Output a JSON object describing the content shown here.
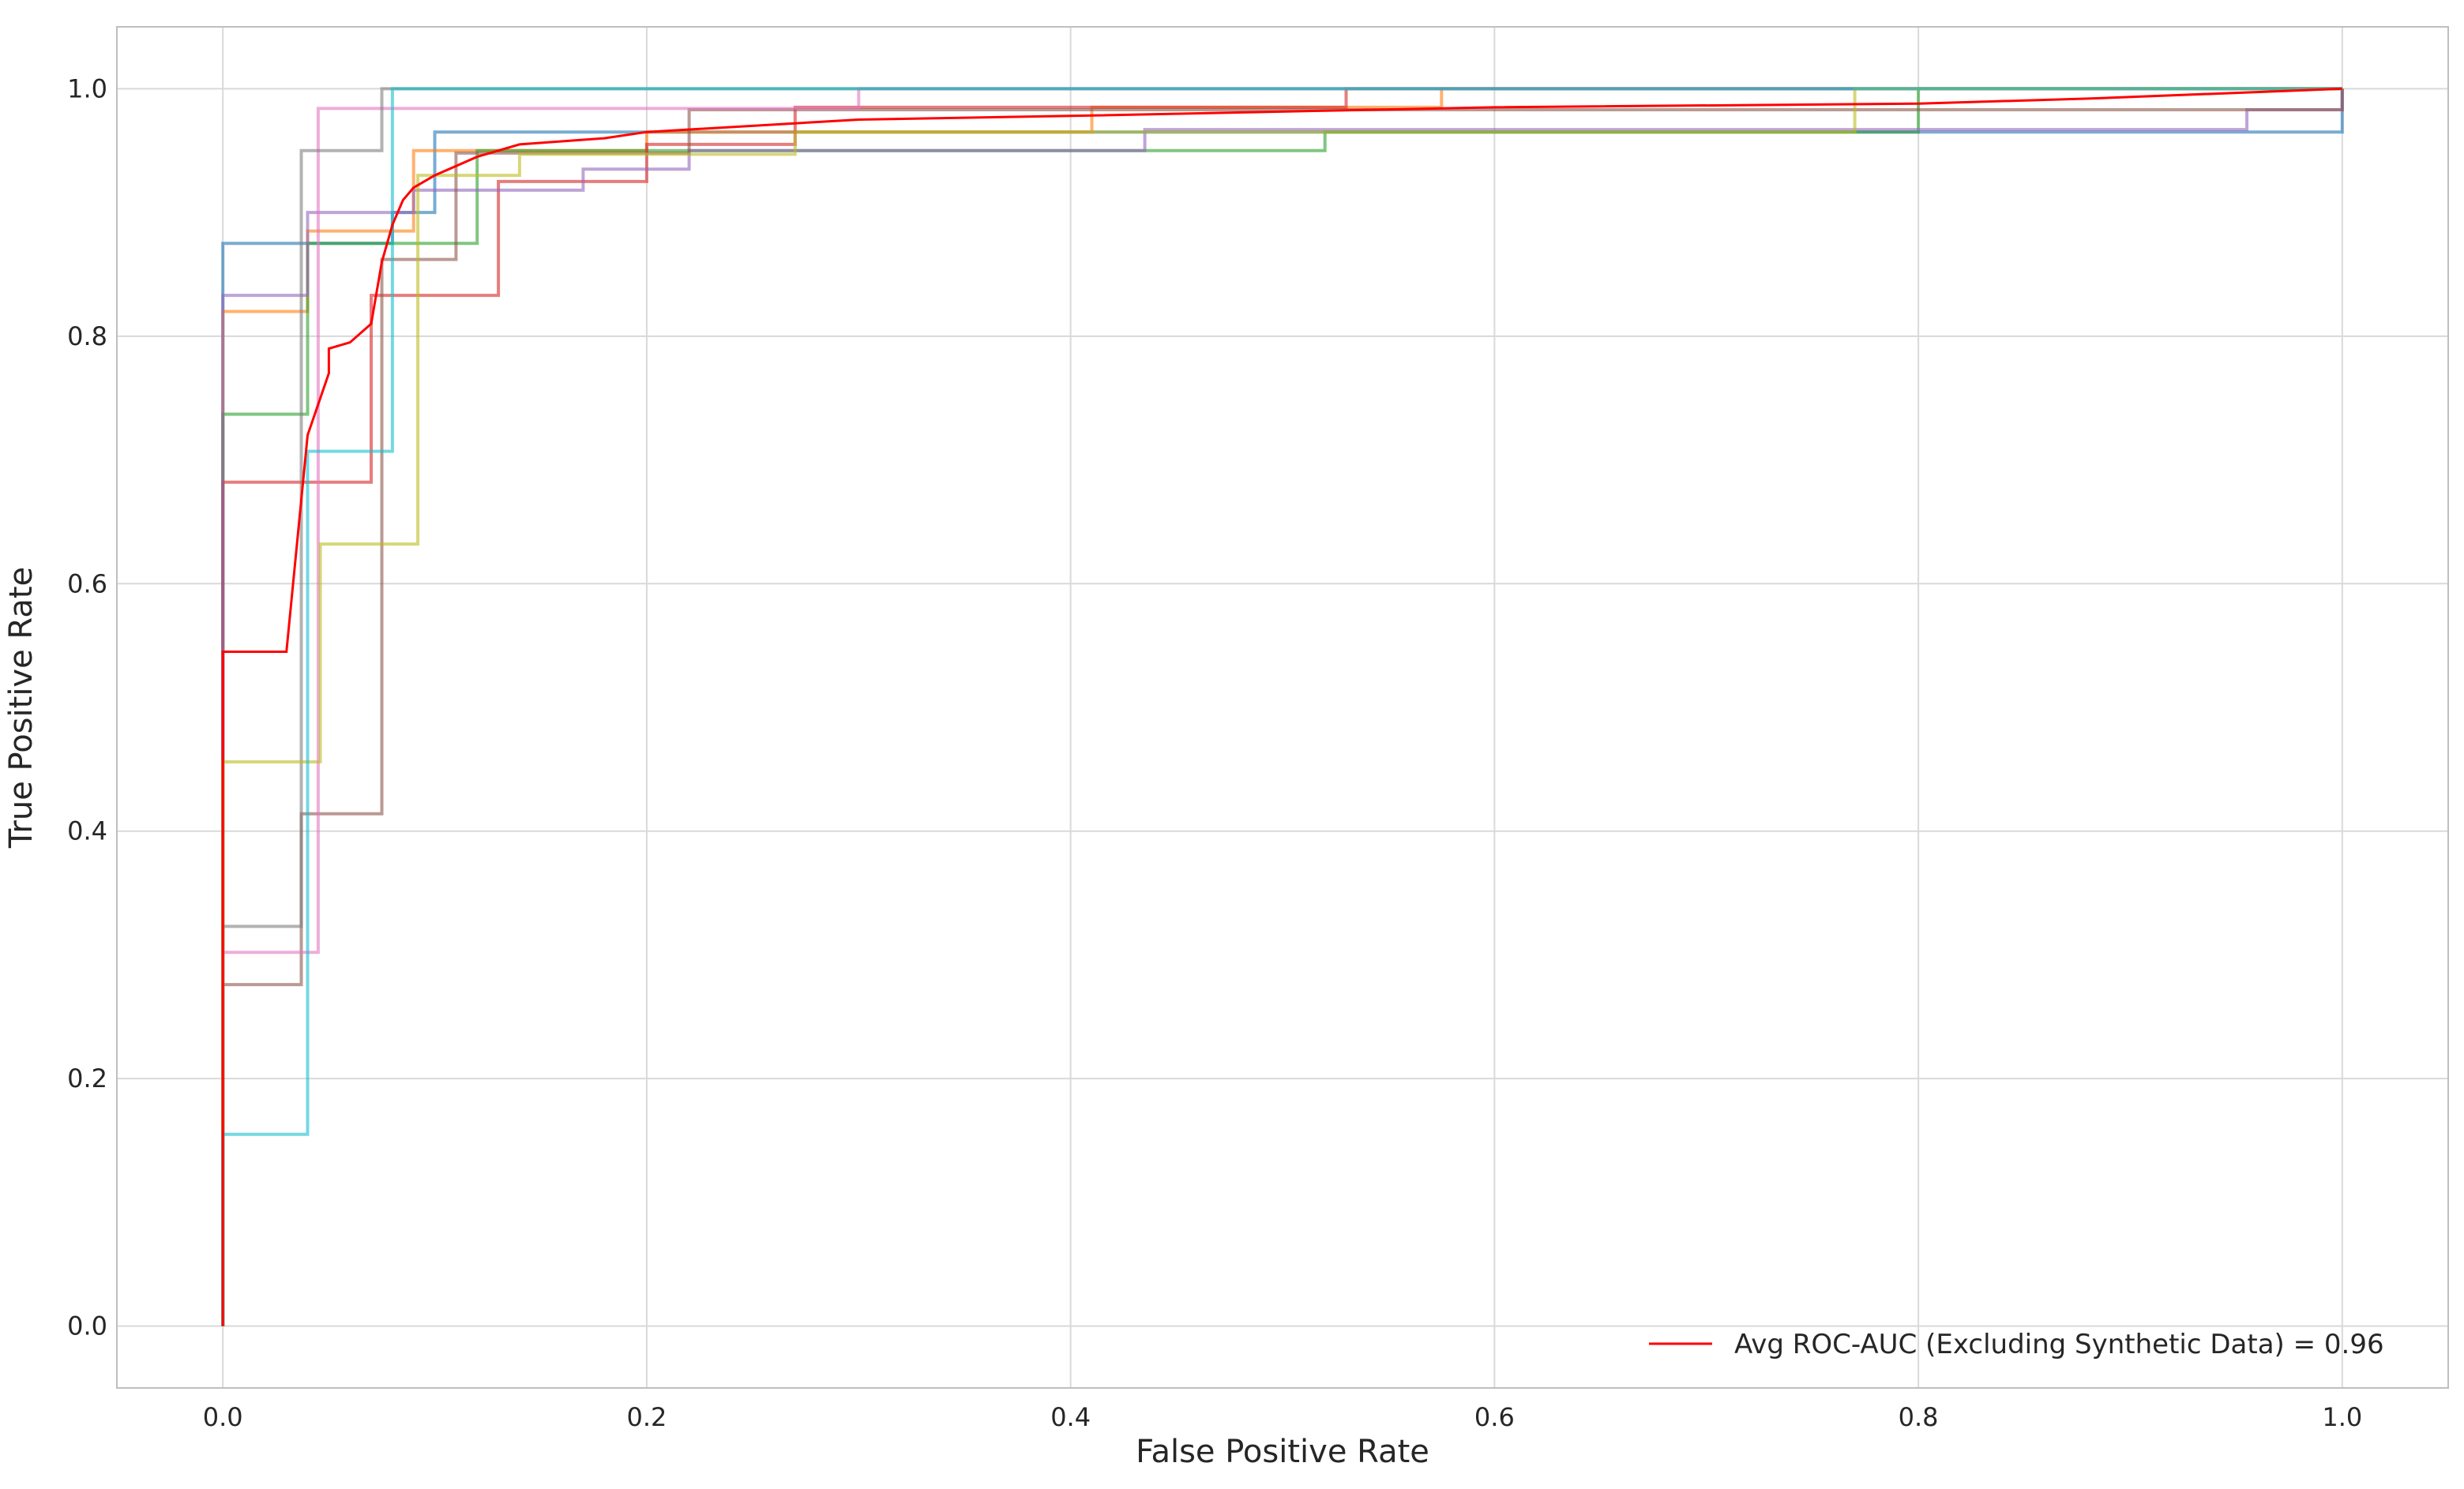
{
  "chart_data": {
    "type": "line",
    "title": "",
    "xlabel": "False Positive Rate",
    "ylabel": "True Positive Rate",
    "xlim": [
      -0.05,
      1.05
    ],
    "ylim": [
      -0.05,
      1.05
    ],
    "xticks": [
      0.0,
      0.2,
      0.4,
      0.6,
      0.8,
      1.0
    ],
    "yticks": [
      0.0,
      0.2,
      0.4,
      0.6,
      0.8,
      1.0
    ],
    "xtick_labels": [
      "0.0",
      "0.2",
      "0.4",
      "0.6",
      "0.8",
      "1.0"
    ],
    "ytick_labels": [
      "0.0",
      "0.2",
      "0.4",
      "0.6",
      "0.8",
      "1.0"
    ],
    "grid": true,
    "legend_position": "lower-right",
    "legend_entries": [
      "Avg ROC-AUC (Excluding Synthetic Data) = 0.96"
    ],
    "series": [
      {
        "color": "#1f77b4",
        "alpha": 0.6,
        "x": [
          0,
          0,
          0.08,
          0.08,
          0.1,
          0.1,
          1.0,
          1.0
        ],
        "y": [
          0,
          0.875,
          0.875,
          0.9,
          0.9,
          0.965,
          0.965,
          1.0
        ]
      },
      {
        "color": "#ff7f0e",
        "alpha": 0.6,
        "x": [
          0,
          0,
          0.04,
          0.04,
          0.09,
          0.09,
          0.2,
          0.2,
          0.41,
          0.41,
          0.575,
          0.575,
          1.0
        ],
        "y": [
          0,
          0.82,
          0.82,
          0.885,
          0.885,
          0.95,
          0.95,
          0.965,
          0.965,
          0.985,
          0.985,
          1.0,
          1.0
        ]
      },
      {
        "color": "#2ca02c",
        "alpha": 0.6,
        "x": [
          0,
          0,
          0.04,
          0.04,
          0.12,
          0.12,
          0.19,
          0.19,
          0.52,
          0.52,
          0.8,
          0.8,
          1.0
        ],
        "y": [
          0,
          0.737,
          0.737,
          0.875,
          0.875,
          0.95,
          0.95,
          0.95,
          0.95,
          0.965,
          0.965,
          1.0,
          1.0
        ]
      },
      {
        "color": "#d62728",
        "alpha": 0.6,
        "x": [
          0,
          0,
          0.07,
          0.07,
          0.13,
          0.13,
          0.2,
          0.2,
          0.27,
          0.27,
          0.53,
          0.53,
          1.0
        ],
        "y": [
          0,
          0.682,
          0.682,
          0.833,
          0.833,
          0.925,
          0.925,
          0.955,
          0.955,
          0.985,
          0.985,
          1.0,
          1.0
        ]
      },
      {
        "color": "#9467bd",
        "alpha": 0.6,
        "x": [
          0,
          0,
          0.04,
          0.04,
          0.09,
          0.09,
          0.17,
          0.17,
          0.22,
          0.22,
          0.435,
          0.435,
          0.955,
          0.955,
          1.0,
          1.0
        ],
        "y": [
          0,
          0.833,
          0.833,
          0.9,
          0.9,
          0.918,
          0.918,
          0.935,
          0.935,
          0.95,
          0.95,
          0.967,
          0.967,
          0.983,
          0.983,
          1.0
        ]
      },
      {
        "color": "#8c564b",
        "alpha": 0.6,
        "x": [
          0,
          0,
          0.037,
          0.037,
          0.075,
          0.075,
          0.11,
          0.11,
          0.22,
          0.22,
          1.0,
          1.0
        ],
        "y": [
          0,
          0.276,
          0.276,
          0.414,
          0.414,
          0.862,
          0.862,
          0.948,
          0.948,
          0.983,
          0.983,
          1.0
        ]
      },
      {
        "color": "#e377c2",
        "alpha": 0.6,
        "x": [
          0,
          0,
          0.045,
          0.045,
          0.3,
          0.3,
          1.0
        ],
        "y": [
          0,
          0.302,
          0.302,
          0.984,
          0.984,
          1.0,
          1.0
        ]
      },
      {
        "color": "#7f7f7f",
        "alpha": 0.6,
        "x": [
          0,
          0,
          0.037,
          0.037,
          0.075,
          0.075,
          1.0
        ],
        "y": [
          0,
          0.323,
          0.323,
          0.95,
          0.95,
          1.0,
          1.0
        ]
      },
      {
        "color": "#bcbd22",
        "alpha": 0.6,
        "x": [
          0,
          0,
          0.046,
          0.046,
          0.092,
          0.092,
          0.14,
          0.14,
          0.27,
          0.27,
          0.77,
          0.77,
          1.0
        ],
        "y": [
          0,
          0.456,
          0.456,
          0.632,
          0.632,
          0.93,
          0.93,
          0.947,
          0.947,
          0.965,
          0.965,
          1.0,
          1.0
        ]
      },
      {
        "color": "#17becf",
        "alpha": 0.6,
        "x": [
          0,
          0,
          0.04,
          0.04,
          0.08,
          0.08,
          1.0
        ],
        "y": [
          0,
          0.155,
          0.155,
          0.707,
          0.707,
          1.0,
          1.0
        ]
      },
      {
        "color": "#ff0000",
        "alpha": 1.0,
        "name": "Avg ROC-AUC (Excluding Synthetic Data) = 0.96",
        "x": [
          0,
          0,
          0.03,
          0.04,
          0.05,
          0.05,
          0.06,
          0.07,
          0.075,
          0.08,
          0.085,
          0.09,
          0.1,
          0.12,
          0.14,
          0.18,
          0.2,
          0.3,
          0.4,
          0.6,
          0.8,
          0.88,
          1.0
        ],
        "y": [
          0,
          0.545,
          0.545,
          0.72,
          0.77,
          0.79,
          0.795,
          0.81,
          0.86,
          0.89,
          0.91,
          0.92,
          0.93,
          0.945,
          0.955,
          0.96,
          0.965,
          0.975,
          0.978,
          0.985,
          0.988,
          0.992,
          1.0
        ]
      }
    ]
  }
}
